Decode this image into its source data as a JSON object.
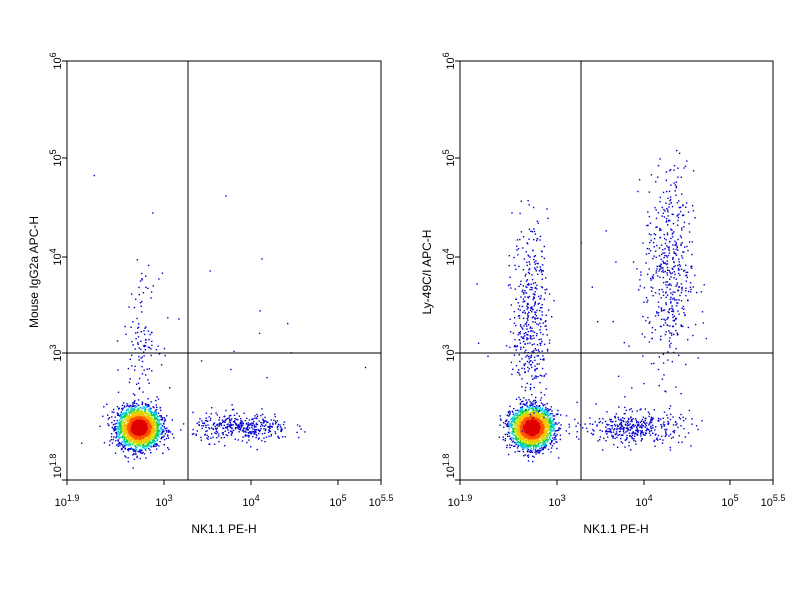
{
  "chart_data": [
    {
      "type": "scatter",
      "subtype": "flow-cytometry-density-dot-plot",
      "title": "",
      "xlabel": "NK1.1 PE-H",
      "ylabel": "Mouse IgG2a APC-H",
      "x_scale": "log",
      "y_scale": "log",
      "xlim_exp": [
        1.9,
        5.5
      ],
      "ylim_exp": [
        1.8,
        6
      ],
      "x_ticks": [
        {
          "base": "10",
          "exp": "1.9",
          "value_exp": 1.9
        },
        {
          "base": "10",
          "exp": "3",
          "value_exp": 3
        },
        {
          "base": "10",
          "exp": "4",
          "value_exp": 4
        },
        {
          "base": "10",
          "exp": "5",
          "value_exp": 5
        },
        {
          "base": "10",
          "exp": "5.5",
          "value_exp": 5.5
        }
      ],
      "y_ticks": [
        {
          "base": "10",
          "exp": "1.8",
          "value_exp": 1.8
        },
        {
          "base": "10",
          "exp": "3",
          "value_exp": 3
        },
        {
          "base": "10",
          "exp": "4",
          "value_exp": 4
        },
        {
          "base": "10",
          "exp": "5",
          "value_exp": 5
        },
        {
          "base": "10",
          "exp": "6",
          "value_exp": 6
        }
      ],
      "quadrant_gate": {
        "x_exp": 3.27,
        "y_exp": 3.02
      },
      "populations": [
        {
          "name": "NK1.1-negative cluster",
          "center_exp": [
            2.72,
            2.33
          ],
          "spread_exp": [
            0.12,
            0.1
          ],
          "count": 2600
        },
        {
          "name": "NK1.1-positive horizontal band",
          "center_exp": [
            3.9,
            2.33
          ],
          "spread_exp": [
            0.28,
            0.07
          ],
          "count": 380
        },
        {
          "name": "upper-left scatter",
          "center_exp": [
            2.75,
            3.25
          ],
          "spread_exp": [
            0.1,
            0.3
          ],
          "count": 110
        },
        {
          "name": "sparse background",
          "center_exp": [
            3.5,
            3.3
          ],
          "spread_exp": [
            0.8,
            0.8
          ],
          "count": 25
        }
      ],
      "grid": false,
      "colormap": [
        "#0000d0",
        "#00c8ff",
        "#00d060",
        "#c8e000",
        "#ffc000",
        "#ff5000",
        "#e00000"
      ]
    },
    {
      "type": "scatter",
      "subtype": "flow-cytometry-density-dot-plot",
      "title": "",
      "xlabel": "NK1.1 PE-H",
      "ylabel": "Ly-49C/I APC-H",
      "x_scale": "log",
      "y_scale": "log",
      "xlim_exp": [
        1.9,
        5.5
      ],
      "ylim_exp": [
        1.8,
        6
      ],
      "x_ticks": [
        {
          "base": "10",
          "exp": "1.9",
          "value_exp": 1.9
        },
        {
          "base": "10",
          "exp": "3",
          "value_exp": 3
        },
        {
          "base": "10",
          "exp": "4",
          "value_exp": 4
        },
        {
          "base": "10",
          "exp": "5",
          "value_exp": 5
        },
        {
          "base": "10",
          "exp": "5.5",
          "value_exp": 5.5
        }
      ],
      "y_ticks": [
        {
          "base": "10",
          "exp": "1.8",
          "value_exp": 1.8
        },
        {
          "base": "10",
          "exp": "3",
          "value_exp": 3
        },
        {
          "base": "10",
          "exp": "4",
          "value_exp": 4
        },
        {
          "base": "10",
          "exp": "5",
          "value_exp": 5
        },
        {
          "base": "10",
          "exp": "6",
          "value_exp": 6
        }
      ],
      "quadrant_gate": {
        "x_exp": 3.27,
        "y_exp": 3.02
      },
      "populations": [
        {
          "name": "NK1.1-negative cluster",
          "center_exp": [
            2.72,
            2.33
          ],
          "spread_exp": [
            0.12,
            0.1
          ],
          "count": 2500
        },
        {
          "name": "NK1.1-positive horizontal band",
          "center_exp": [
            3.9,
            2.33
          ],
          "spread_exp": [
            0.28,
            0.08
          ],
          "count": 400
        },
        {
          "name": "upper-left streak",
          "center_exp": [
            2.7,
            3.45
          ],
          "spread_exp": [
            0.1,
            0.45
          ],
          "count": 420
        },
        {
          "name": "upper-right NK1.1+ Ly-49C/I+ population",
          "center_exp": [
            4.3,
            3.9
          ],
          "spread_exp": [
            0.14,
            0.5
          ],
          "count": 480
        },
        {
          "name": "sparse background",
          "center_exp": [
            3.5,
            3.3
          ],
          "spread_exp": [
            0.8,
            0.8
          ],
          "count": 40
        }
      ],
      "grid": false,
      "colormap": [
        "#0000d0",
        "#00c8ff",
        "#00d060",
        "#c8e000",
        "#ffc000",
        "#ff5000",
        "#e00000"
      ]
    }
  ]
}
